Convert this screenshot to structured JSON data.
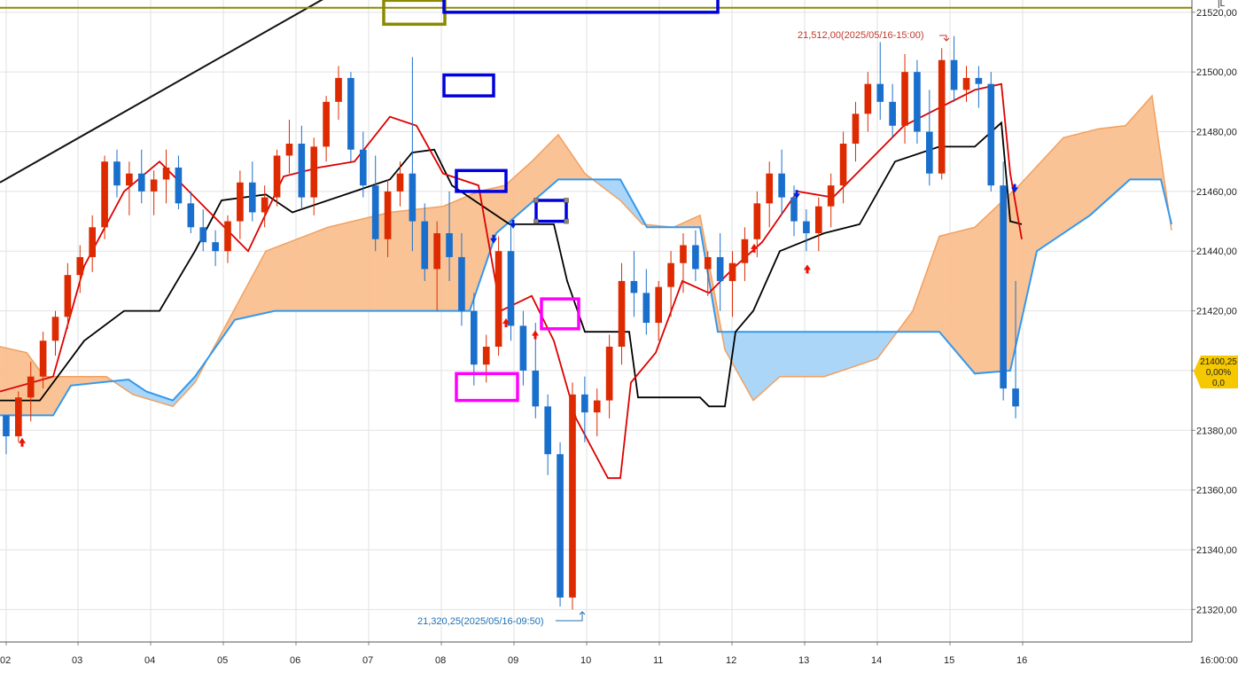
{
  "chart_data": {
    "type": "candlestick",
    "y_range": [
      21310,
      21525
    ],
    "y_ticks": [
      21320,
      21340,
      21360,
      21380,
      21400,
      21420,
      21440,
      21460,
      21480,
      21500,
      21520
    ],
    "y_tick_labels": [
      "21320,00",
      "21340,00",
      "21360,00",
      "21380,00",
      "21400,00",
      "21420,00",
      "21440,00",
      "21460,00",
      "21480,00",
      "21500,00",
      "21520,00"
    ],
    "x_labels": [
      "02",
      "03",
      "04",
      "05",
      "06",
      "07",
      "08",
      "09",
      "10",
      "11",
      "12",
      "13",
      "14",
      "15",
      "16"
    ],
    "x_right_label": "16:00:00",
    "annotations": {
      "high_label": "21,512,00(2025/05/16-15:00)",
      "low_label": "21,320,25(2025/05/16-09:50)"
    },
    "current_price_box": [
      "21400,25",
      "0,00%",
      "0,0"
    ],
    "corner_label": "|L",
    "colors": {
      "up": "#dd2a00",
      "down": "#1a6fcc",
      "conversion_line": "#dd0000",
      "base_line": "#000000",
      "span_b": "#3399ee",
      "cloud_bull": "#fac08f",
      "cloud_bear": "#a8d4f8",
      "marker_blue": "#0000dd",
      "marker_magenta": "#ff00ff",
      "marker_olive": "#8b8b00",
      "price_box": "#f5c800"
    },
    "candles_x_range": [
      0,
      1153
    ],
    "candles": [
      [
        21385,
        21385,
        21372,
        21378
      ],
      [
        21378,
        21393,
        21376,
        21391
      ],
      [
        21391,
        21403,
        21383,
        21398
      ],
      [
        21398,
        21413,
        21394,
        21410
      ],
      [
        21410,
        21420,
        21405,
        21418
      ],
      [
        21418,
        21436,
        21414,
        21432
      ],
      [
        21432,
        21442,
        21426,
        21438
      ],
      [
        21438,
        21452,
        21433,
        21448
      ],
      [
        21448,
        21472,
        21444,
        21470
      ],
      [
        21470,
        21474,
        21458,
        21462
      ],
      [
        21462,
        21470,
        21452,
        21466
      ],
      [
        21466,
        21474,
        21456,
        21460
      ],
      [
        21460,
        21467,
        21452,
        21464
      ],
      [
        21464,
        21474,
        21456,
        21468
      ],
      [
        21468,
        21472,
        21454,
        21456
      ],
      [
        21456,
        21460,
        21446,
        21448
      ],
      [
        21448,
        21454,
        21440,
        21443
      ],
      [
        21443,
        21447,
        21435,
        21440
      ],
      [
        21440,
        21452,
        21436,
        21450
      ],
      [
        21450,
        21467,
        21444,
        21463
      ],
      [
        21463,
        21470,
        21450,
        21453
      ],
      [
        21453,
        21462,
        21448,
        21458
      ],
      [
        21458,
        21474,
        21455,
        21472
      ],
      [
        21472,
        21484,
        21466,
        21476
      ],
      [
        21476,
        21482,
        21454,
        21458
      ],
      [
        21458,
        21478,
        21452,
        21475
      ],
      [
        21475,
        21492,
        21470,
        21490
      ],
      [
        21490,
        21502,
        21484,
        21498
      ],
      [
        21498,
        21500,
        21470,
        21474
      ],
      [
        21474,
        21480,
        21458,
        21462
      ],
      [
        21462,
        21472,
        21440,
        21444
      ],
      [
        21444,
        21464,
        21438,
        21460
      ],
      [
        21460,
        21470,
        21455,
        21466
      ],
      [
        21466,
        21505,
        21440,
        21450
      ],
      [
        21450,
        21456,
        21430,
        21434
      ],
      [
        21434,
        21450,
        21420,
        21446
      ],
      [
        21446,
        21460,
        21430,
        21438
      ],
      [
        21438,
        21446,
        21415,
        21420
      ],
      [
        21420,
        21426,
        21395,
        21402
      ],
      [
        21402,
        21412,
        21396,
        21408
      ],
      [
        21408,
        21445,
        21405,
        21440
      ],
      [
        21440,
        21450,
        21410,
        21415
      ],
      [
        21415,
        21420,
        21395,
        21400
      ],
      [
        21400,
        21416,
        21384,
        21388
      ],
      [
        21388,
        21392,
        21365,
        21372
      ],
      [
        21372,
        21376,
        21321,
        21324
      ],
      [
        21324,
        21396,
        21320,
        21392
      ],
      [
        21392,
        21398,
        21376,
        21386
      ],
      [
        21386,
        21394,
        21378,
        21390
      ],
      [
        21390,
        21412,
        21384,
        21408
      ],
      [
        21408,
        21436,
        21402,
        21430
      ],
      [
        21430,
        21440,
        21418,
        21426
      ],
      [
        21426,
        21434,
        21412,
        21416
      ],
      [
        21416,
        21430,
        21410,
        21428
      ],
      [
        21428,
        21440,
        21418,
        21436
      ],
      [
        21436,
        21446,
        21426,
        21442
      ],
      [
        21442,
        21447,
        21430,
        21434
      ],
      [
        21434,
        21440,
        21425,
        21438
      ],
      [
        21438,
        21446,
        21420,
        21430
      ],
      [
        21430,
        21440,
        21418,
        21436
      ],
      [
        21436,
        21448,
        21430,
        21444
      ],
      [
        21444,
        21460,
        21438,
        21456
      ],
      [
        21456,
        21470,
        21448,
        21466
      ],
      [
        21466,
        21474,
        21452,
        21458
      ],
      [
        21458,
        21462,
        21445,
        21450
      ],
      [
        21450,
        21454,
        21440,
        21446
      ],
      [
        21446,
        21458,
        21440,
        21455
      ],
      [
        21455,
        21466,
        21448,
        21462
      ],
      [
        21462,
        21480,
        21456,
        21476
      ],
      [
        21476,
        21490,
        21470,
        21486
      ],
      [
        21486,
        21500,
        21480,
        21496
      ],
      [
        21496,
        21510,
        21484,
        21490
      ],
      [
        21490,
        21496,
        21478,
        21482
      ],
      [
        21482,
        21506,
        21476,
        21500
      ],
      [
        21500,
        21504,
        21476,
        21480
      ],
      [
        21480,
        21494,
        21462,
        21466
      ],
      [
        21466,
        21508,
        21464,
        21504
      ],
      [
        21504,
        21512,
        21490,
        21494
      ],
      [
        21494,
        21502,
        21490,
        21498
      ],
      [
        21498,
        21502,
        21488,
        21496
      ],
      [
        21496,
        21500,
        21460,
        21462
      ],
      [
        21462,
        21470,
        21390,
        21394
      ],
      [
        21394,
        21430,
        21384,
        21388
      ]
    ],
    "indicators": {
      "conversion_line": [
        [
          0,
          21393
        ],
        [
          60,
          21398
        ],
        [
          95,
          21435
        ],
        [
          140,
          21460
        ],
        [
          180,
          21470
        ],
        [
          230,
          21455
        ],
        [
          280,
          21440
        ],
        [
          320,
          21465
        ],
        [
          360,
          21468
        ],
        [
          400,
          21470
        ],
        [
          440,
          21485
        ],
        [
          470,
          21482
        ],
        [
          500,
          21466
        ],
        [
          540,
          21462
        ],
        [
          565,
          21420
        ],
        [
          600,
          21425
        ],
        [
          625,
          21410
        ],
        [
          650,
          21384
        ],
        [
          686,
          21364
        ],
        [
          700,
          21364
        ],
        [
          712,
          21396
        ],
        [
          740,
          21406
        ],
        [
          770,
          21430
        ],
        [
          800,
          21426
        ],
        [
          830,
          21435
        ],
        [
          860,
          21443
        ],
        [
          900,
          21460
        ],
        [
          940,
          21458
        ],
        [
          980,
          21470
        ],
        [
          1020,
          21482
        ],
        [
          1060,
          21488
        ],
        [
          1100,
          21494
        ],
        [
          1130,
          21496
        ],
        [
          1140,
          21466
        ],
        [
          1153,
          21444
        ]
      ],
      "base_line": [
        [
          0,
          21390
        ],
        [
          45,
          21390
        ],
        [
          95,
          21410
        ],
        [
          140,
          21420
        ],
        [
          180,
          21420
        ],
        [
          220,
          21440
        ],
        [
          250,
          21457
        ],
        [
          300,
          21459
        ],
        [
          330,
          21453
        ],
        [
          400,
          21460
        ],
        [
          440,
          21464
        ],
        [
          465,
          21473
        ],
        [
          490,
          21474
        ],
        [
          510,
          21462
        ],
        [
          575,
          21449
        ],
        [
          610,
          21449
        ],
        [
          625,
          21449
        ],
        [
          640,
          21430
        ],
        [
          660,
          21413
        ],
        [
          710,
          21413
        ],
        [
          720,
          21391
        ],
        [
          790,
          21391
        ],
        [
          800,
          21388
        ],
        [
          818,
          21388
        ],
        [
          830,
          21413
        ],
        [
          850,
          21420
        ],
        [
          880,
          21440
        ],
        [
          930,
          21446
        ],
        [
          970,
          21449
        ],
        [
          1010,
          21470
        ],
        [
          1060,
          21475
        ],
        [
          1100,
          21475
        ],
        [
          1130,
          21483
        ],
        [
          1140,
          21450
        ],
        [
          1153,
          21449
        ]
      ],
      "span_a": [
        [
          0,
          21408
        ],
        [
          30,
          21406
        ],
        [
          50,
          21398
        ],
        [
          120,
          21398
        ],
        [
          150,
          21392
        ],
        [
          195,
          21388
        ],
        [
          220,
          21396
        ],
        [
          260,
          21418
        ],
        [
          300,
          21440
        ],
        [
          370,
          21448
        ],
        [
          440,
          21453
        ],
        [
          500,
          21455
        ],
        [
          540,
          21460
        ],
        [
          570,
          21462
        ],
        [
          600,
          21470
        ],
        [
          630,
          21479
        ],
        [
          660,
          21466
        ],
        [
          700,
          21457
        ],
        [
          725,
          21449
        ],
        [
          760,
          21448
        ],
        [
          790,
          21452
        ],
        [
          818,
          21407
        ],
        [
          850,
          21390
        ],
        [
          880,
          21398
        ],
        [
          930,
          21398
        ],
        [
          990,
          21404
        ],
        [
          1030,
          21420
        ],
        [
          1060,
          21445
        ],
        [
          1100,
          21448
        ],
        [
          1150,
          21462
        ],
        [
          1200,
          21478
        ],
        [
          1240,
          21481
        ],
        [
          1270,
          21482
        ],
        [
          1300,
          21492
        ],
        [
          1322,
          21447
        ]
      ],
      "span_b": [
        [
          0,
          21385
        ],
        [
          60,
          21385
        ],
        [
          80,
          21395
        ],
        [
          145,
          21397
        ],
        [
          165,
          21393
        ],
        [
          195,
          21390
        ],
        [
          220,
          21398
        ],
        [
          265,
          21417
        ],
        [
          310,
          21420
        ],
        [
          530,
          21420
        ],
        [
          560,
          21446
        ],
        [
          630,
          21464
        ],
        [
          700,
          21464
        ],
        [
          730,
          21448
        ],
        [
          790,
          21448
        ],
        [
          810,
          21413
        ],
        [
          1060,
          21413
        ],
        [
          1100,
          21399
        ],
        [
          1140,
          21400
        ],
        [
          1170,
          21440
        ],
        [
          1230,
          21452
        ],
        [
          1275,
          21464
        ],
        [
          1310,
          21464
        ],
        [
          1322,
          21449
        ]
      ]
    },
    "signals": {
      "up_arrows": [
        [
          25,
          21376
        ],
        [
          571,
          21416
        ],
        [
          604,
          21412
        ],
        [
          851,
          21441
        ],
        [
          911,
          21434
        ]
      ],
      "down_arrows": [
        [
          557,
          21444
        ],
        [
          579,
          21449
        ],
        [
          899,
          21459
        ],
        [
          1145,
          21461
        ]
      ]
    },
    "trend_line": [
      [
        0,
        21463
      ],
      [
        380,
        21527
      ]
    ],
    "horizontal_level": 21521.5,
    "markers": [
      {
        "color": "olive",
        "x0": 433,
        "x1": 502,
        "y0": 21516,
        "y1": 21524
      },
      {
        "color": "blue",
        "x0": 501,
        "x1": 810,
        "y0": 21520,
        "y1": 21530
      },
      {
        "color": "blue",
        "x0": 501,
        "x1": 557,
        "y0": 21492,
        "y1": 21499
      },
      {
        "color": "blue",
        "x0": 515,
        "x1": 571,
        "y0": 21460,
        "y1": 21467
      },
      {
        "color": "blue",
        "x0": 605,
        "x1": 639,
        "y0": 21450,
        "y1": 21457
      },
      {
        "color": "magenta",
        "x0": 611,
        "x1": 653,
        "y0": 21414,
        "y1": 21424
      },
      {
        "color": "magenta",
        "x0": 515,
        "x1": 584,
        "y0": 21390,
        "y1": 21399
      }
    ]
  }
}
